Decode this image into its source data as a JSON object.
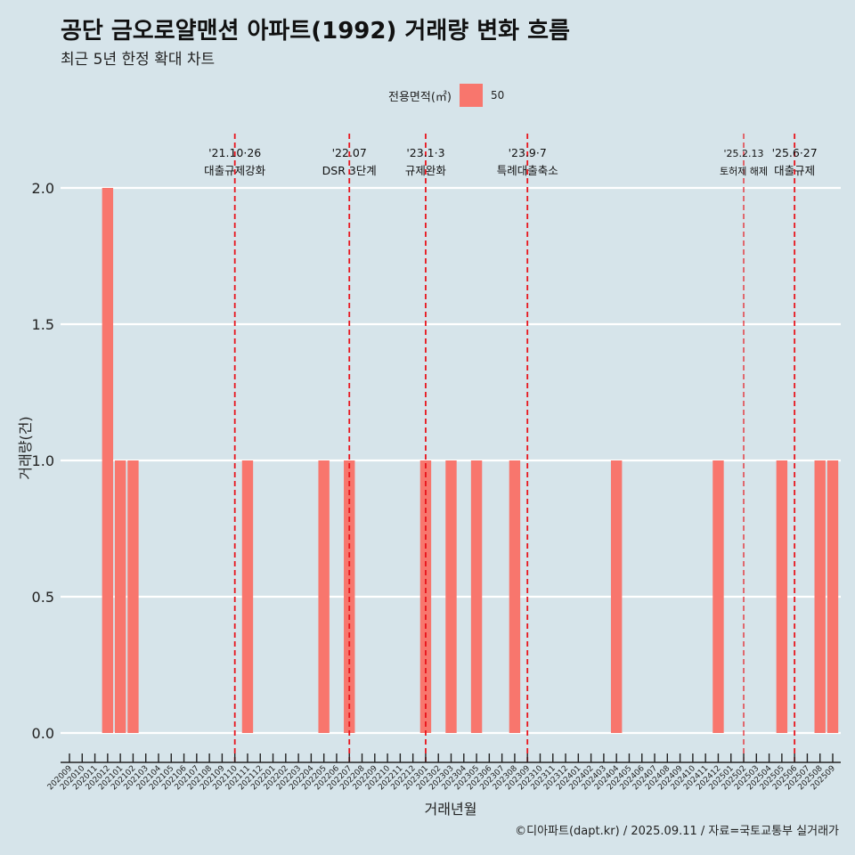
{
  "title": "공단 금오로얄맨션 아파트(1992) 거래량 변화 흐름",
  "subtitle": "최근 5년 한정 확대 차트",
  "caption": "©디아파트(dapt.kr) / 2025.09.11 / 자료=국토교통부 실거래가",
  "legend": {
    "title": "전용면적(㎡)",
    "items": [
      {
        "label": "50",
        "color": "#f8766d"
      }
    ]
  },
  "chart_data": {
    "type": "bar",
    "title": "공단 금오로얄맨션 아파트(1992) 거래량 변화 흐름",
    "subtitle": "최근 5년 한정 확대 차트",
    "xlabel": "거래년월",
    "ylabel": "거래량(건)",
    "ylim": [
      0,
      2.0
    ],
    "yticks": [
      "0.0",
      "0.5",
      "1.0",
      "1.5",
      "2.0"
    ],
    "ytick_values": [
      0,
      0.5,
      1.0,
      1.5,
      2.0
    ],
    "grid": true,
    "legend_position": "top",
    "categories": [
      "202009",
      "202010",
      "202011",
      "202012",
      "202101",
      "202102",
      "202103",
      "202104",
      "202105",
      "202106",
      "202107",
      "202108",
      "202109",
      "202110",
      "202111",
      "202112",
      "202201",
      "202202",
      "202203",
      "202204",
      "202205",
      "202206",
      "202207",
      "202208",
      "202209",
      "202210",
      "202211",
      "202212",
      "202301",
      "202302",
      "202303",
      "202304",
      "202305",
      "202306",
      "202307",
      "202308",
      "202309",
      "202310",
      "202311",
      "202312",
      "202401",
      "202402",
      "202403",
      "202404",
      "202405",
      "202406",
      "202407",
      "202408",
      "202409",
      "202410",
      "202411",
      "202412",
      "202501",
      "202502",
      "202503",
      "202504",
      "202505",
      "202506",
      "202507",
      "202508",
      "202509"
    ],
    "series": [
      {
        "name": "50",
        "color": "#f8766d",
        "values": [
          0,
          0,
          0,
          2,
          1,
          1,
          0,
          0,
          0,
          0,
          0,
          0,
          0,
          0,
          1,
          0,
          0,
          0,
          0,
          0,
          1,
          0,
          1,
          0,
          0,
          0,
          0,
          0,
          1,
          0,
          1,
          0,
          1,
          0,
          0,
          1,
          0,
          0,
          0,
          0,
          0,
          0,
          0,
          1,
          0,
          0,
          0,
          0,
          0,
          0,
          0,
          1,
          0,
          0,
          0,
          0,
          1,
          0,
          0,
          1,
          1
        ]
      }
    ],
    "annotations": [
      {
        "date": "202110",
        "line1": "'21.10·26",
        "line2": "대출규제강화",
        "style": "bold"
      },
      {
        "date": "202207",
        "line1": "'22.07",
        "line2": "DSR 3단계",
        "style": "bold"
      },
      {
        "date": "202301",
        "line1": "'23.1·3",
        "line2": "규제완화",
        "style": "bold"
      },
      {
        "date": "202309",
        "line1": "'23.9·7",
        "line2": "특례대출축소",
        "style": "bold"
      },
      {
        "date": "202502",
        "line1": "'25.2.13",
        "line2": "토허제 해제",
        "style": "thin"
      },
      {
        "date": "202506",
        "line1": "'25.6·27",
        "line2": "대출규제",
        "style": "bold"
      }
    ]
  }
}
